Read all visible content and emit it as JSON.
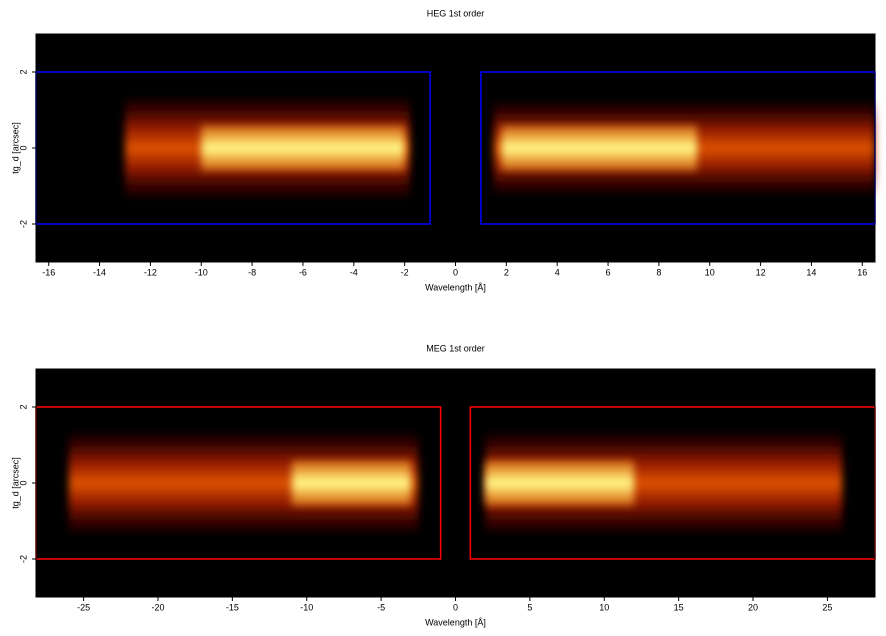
{
  "chart_data": [
    {
      "type": "heatmap",
      "title": "HEG 1st order",
      "x_label": "Wavelength [Å]",
      "y_label": "tg_d [arcsec]",
      "xlim": [
        -16.5,
        16.5
      ],
      "ylim": [
        -3,
        3
      ],
      "xticks": [
        -16,
        -14,
        -12,
        -10,
        -8,
        -6,
        -4,
        -2,
        0,
        2,
        4,
        6,
        8,
        10,
        12,
        14,
        16
      ],
      "yticks": [
        -2,
        0,
        2
      ],
      "box_color": "#0000ff",
      "boxes": [
        {
          "x": [
            -16.5,
            -1
          ],
          "y": [
            -2,
            2
          ]
        },
        {
          "x": [
            1,
            16.5
          ],
          "y": [
            -2,
            2
          ]
        }
      ],
      "emission": [
        {
          "x": [
            -13,
            -1.8
          ],
          "y": [
            -1.3,
            1.3
          ]
        },
        {
          "x": [
            1.5,
            16.5
          ],
          "y": [
            -1.2,
            1.2
          ]
        }
      ],
      "cores": [
        {
          "x": [
            -10,
            -2
          ],
          "y": [
            -0.6,
            0.6
          ]
        },
        {
          "x": [
            1.8,
            9.5
          ],
          "y": [
            -0.6,
            0.6
          ]
        }
      ]
    },
    {
      "type": "heatmap",
      "title": "MEG 1st order",
      "x_label": "Wavelength [Å]",
      "y_label": "tg_d [arcsec]",
      "xlim": [
        -28.2,
        28.2
      ],
      "ylim": [
        -3,
        3
      ],
      "xticks": [
        -25,
        -20,
        -15,
        -10,
        -5,
        0,
        5,
        10,
        15,
        20,
        25
      ],
      "yticks": [
        -2,
        0,
        2
      ],
      "box_color": "#ff0000",
      "boxes": [
        {
          "x": [
            -28.2,
            -1
          ],
          "y": [
            -2,
            2
          ]
        },
        {
          "x": [
            1,
            28.2
          ],
          "y": [
            -2,
            2
          ]
        }
      ],
      "emission": [
        {
          "x": [
            -26,
            -2.5
          ],
          "y": [
            -1.3,
            1.3
          ]
        },
        {
          "x": [
            2,
            26
          ],
          "y": [
            -1.3,
            1.3
          ]
        }
      ],
      "cores": [
        {
          "x": [
            -11,
            -3
          ],
          "y": [
            -0.6,
            0.6
          ]
        },
        {
          "x": [
            2,
            12
          ],
          "y": [
            -0.6,
            0.6
          ]
        }
      ]
    }
  ]
}
